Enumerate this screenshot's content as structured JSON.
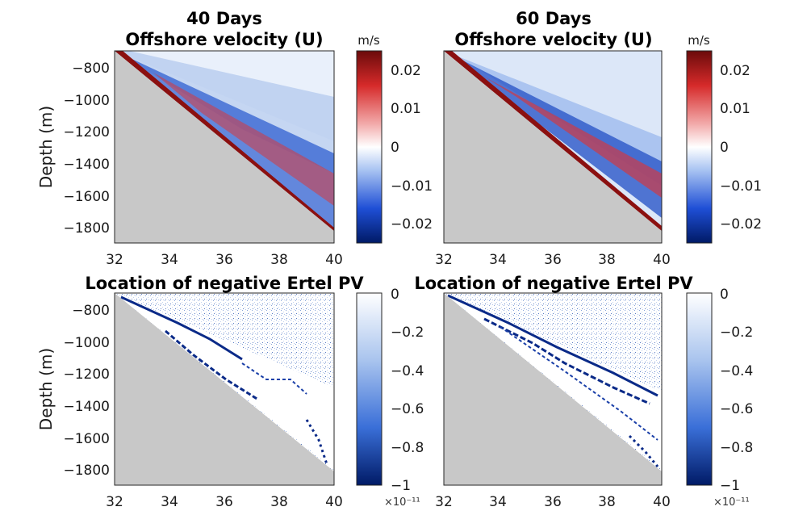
{
  "chart_data": [
    {
      "type": "heatmap",
      "title_line1": "40 Days",
      "title_line2": "Offshore velocity (U)",
      "ylabel": "Depth (m)",
      "xlim": [
        32,
        40
      ],
      "ylim": [
        -1900,
        -700
      ],
      "xticks": [
        "32",
        "34",
        "36",
        "38",
        "40"
      ],
      "yticks": [
        "-800",
        "-1000",
        "-1200",
        "-1400",
        "-1600",
        "-1800"
      ],
      "slope": {
        "x": [
          32,
          40
        ],
        "depth": [
          -700,
          -1820
        ]
      },
      "colorbar": {
        "unit": "m/s",
        "range": [
          -0.025,
          0.025
        ],
        "ticks": [
          "0.02",
          "0.01",
          "0",
          "-0.01",
          "-0.02"
        ],
        "colormap": "blue-white-red",
        "exponent": ""
      },
      "mask_color": "#c8c8c8"
    },
    {
      "type": "heatmap",
      "title_line1": "60 Days",
      "title_line2": "Offshore velocity (U)",
      "ylabel": "",
      "xlim": [
        32,
        40
      ],
      "ylim": [
        -1900,
        -700
      ],
      "xticks": [
        "32",
        "34",
        "36",
        "38",
        "40"
      ],
      "yticks": [],
      "slope": {
        "x": [
          32,
          40
        ],
        "depth": [
          -700,
          -1820
        ]
      },
      "colorbar": {
        "unit": "m/s",
        "range": [
          -0.025,
          0.025
        ],
        "ticks": [
          "0.02",
          "0.01",
          "0",
          "-0.01",
          "-0.02"
        ],
        "colormap": "blue-white-red",
        "exponent": ""
      },
      "mask_color": "#c8c8c8"
    },
    {
      "type": "heatmap",
      "title_line1": "",
      "title_line2": "Location of negative Ertel PV",
      "ylabel": "Depth (m)",
      "xlim": [
        32,
        40
      ],
      "ylim": [
        -1900,
        -700
      ],
      "xticks": [
        "32",
        "34",
        "36",
        "38",
        "40"
      ],
      "yticks": [
        "-800",
        "-1000",
        "-1200",
        "-1400",
        "-1600",
        "-1800"
      ],
      "slope": {
        "x": [
          32,
          40
        ],
        "depth": [
          -700,
          -1820
        ]
      },
      "colorbar": {
        "unit": "",
        "range": [
          -1,
          0
        ],
        "ticks": [
          "0",
          "-0.2",
          "-0.4",
          "-0.6",
          "-0.8",
          "-1"
        ],
        "colormap": "white-blue",
        "exponent": "×10⁻¹¹"
      },
      "mask_color": "#c8c8c8"
    },
    {
      "type": "heatmap",
      "title_line1": "",
      "title_line2": "Location of negative Ertel PV",
      "ylabel": "",
      "xlim": [
        32,
        40
      ],
      "ylim": [
        -1900,
        -700
      ],
      "xticks": [
        "32",
        "34",
        "36",
        "38",
        "40"
      ],
      "yticks": [],
      "slope": {
        "x": [
          32,
          40
        ],
        "depth": [
          -700,
          -1820
        ]
      },
      "colorbar": {
        "unit": "",
        "range": [
          -1,
          0
        ],
        "ticks": [
          "0",
          "-0.2",
          "-0.4",
          "-0.6",
          "-0.8",
          "-1"
        ],
        "colormap": "white-blue",
        "exponent": "×10⁻¹¹"
      },
      "mask_color": "#c8c8c8"
    }
  ]
}
